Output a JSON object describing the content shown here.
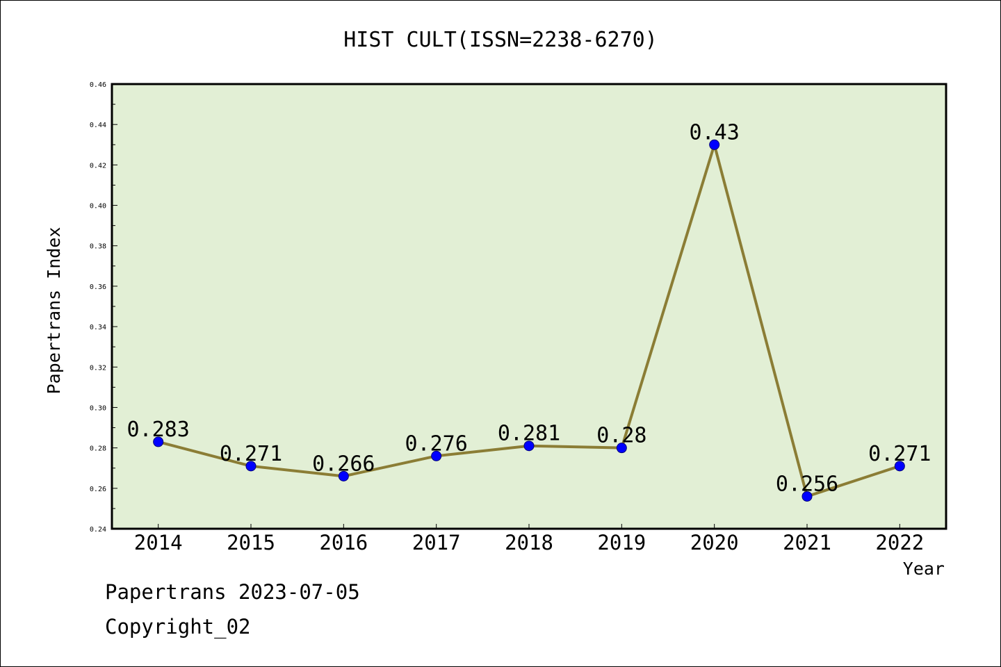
{
  "chart_data": {
    "type": "line",
    "title": "HIST CULT(ISSN=2238-6270)",
    "xlabel": "Year",
    "ylabel": "Papertrans Index",
    "x": [
      "2014",
      "2015",
      "2016",
      "2017",
      "2018",
      "2019",
      "2020",
      "2021",
      "2022"
    ],
    "series": [
      {
        "values": [
          0.283,
          0.271,
          0.266,
          0.276,
          0.281,
          0.28,
          0.43,
          0.256,
          0.271
        ],
        "labels": [
          "0.283",
          "0.271",
          "0.266",
          "0.276",
          "0.281",
          "0.28",
          "0.43",
          "0.256",
          "0.271"
        ]
      }
    ],
    "ylim": [
      0.24,
      0.46
    ],
    "yticks": [
      "0.24",
      "0.26",
      "0.28",
      "0.30",
      "0.32",
      "0.34",
      "0.36",
      "0.38",
      "0.40",
      "0.42",
      "0.44",
      "0.46"
    ],
    "grid": false,
    "colors": {
      "plot_background": "#e2efd5",
      "line": "#8b7d35",
      "marker": "#0000ff"
    }
  },
  "footer": {
    "line1": "Papertrans 2023-07-05",
    "line2": "Copyright_02"
  }
}
